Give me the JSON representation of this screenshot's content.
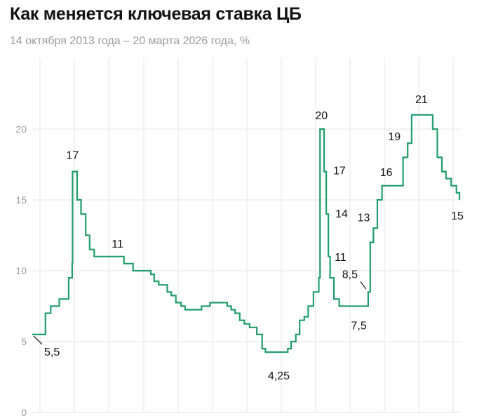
{
  "title": "Как меняется ключевая ставка ЦБ",
  "subtitle": "14 октября 2013 года – 20 марта 2026 года, %",
  "colors": {
    "line": "#1f9d6b",
    "grid": "#e6e6e6",
    "axis_text": "#9a9a9a"
  },
  "chart_data": {
    "type": "line",
    "step": true,
    "grid": true,
    "ylim": [
      0,
      21
    ],
    "xlim": [
      "2013-10-14",
      "2026-03-20"
    ],
    "y_ticks": [
      "0",
      "5",
      "10",
      "15",
      "20"
    ],
    "series": [
      {
        "points": [
          [
            "2013-10-14",
            5.5
          ],
          [
            "2014-03-03",
            7
          ],
          [
            "2014-04-28",
            7.5
          ],
          [
            "2014-07-28",
            8
          ],
          [
            "2014-11-05",
            9.5
          ],
          [
            "2014-12-12",
            10.5
          ],
          [
            "2014-12-16",
            17
          ],
          [
            "2015-02-02",
            15
          ],
          [
            "2015-03-16",
            14
          ],
          [
            "2015-05-05",
            12.5
          ],
          [
            "2015-06-16",
            11.5
          ],
          [
            "2015-08-03",
            11
          ],
          [
            "2016-06-14",
            10.5
          ],
          [
            "2016-09-19",
            10
          ],
          [
            "2017-03-27",
            9.75
          ],
          [
            "2017-05-02",
            9.25
          ],
          [
            "2017-06-19",
            9
          ],
          [
            "2017-09-18",
            8.5
          ],
          [
            "2017-10-30",
            8.25
          ],
          [
            "2017-12-18",
            7.75
          ],
          [
            "2018-02-12",
            7.5
          ],
          [
            "2018-03-26",
            7.25
          ],
          [
            "2018-09-17",
            7.5
          ],
          [
            "2018-12-17",
            7.75
          ],
          [
            "2019-06-17",
            7.5
          ],
          [
            "2019-07-29",
            7.25
          ],
          [
            "2019-09-09",
            7
          ],
          [
            "2019-10-28",
            6.5
          ],
          [
            "2019-12-16",
            6.25
          ],
          [
            "2020-02-10",
            6
          ],
          [
            "2020-04-27",
            5.5
          ],
          [
            "2020-06-22",
            4.5
          ],
          [
            "2020-07-27",
            4.25
          ],
          [
            "2021-03-22",
            4.5
          ],
          [
            "2021-04-26",
            5
          ],
          [
            "2021-06-15",
            5.5
          ],
          [
            "2021-07-26",
            6.5
          ],
          [
            "2021-09-13",
            6.75
          ],
          [
            "2021-10-25",
            7.5
          ],
          [
            "2021-12-20",
            8.5
          ],
          [
            "2022-02-14",
            9.5
          ],
          [
            "2022-02-28",
            20
          ],
          [
            "2022-04-11",
            17
          ],
          [
            "2022-05-04",
            14
          ],
          [
            "2022-05-27",
            11
          ],
          [
            "2022-06-14",
            9.5
          ],
          [
            "2022-07-25",
            8
          ],
          [
            "2022-09-19",
            7.5
          ],
          [
            "2023-07-24",
            8.5
          ],
          [
            "2023-08-15",
            12
          ],
          [
            "2023-09-18",
            13
          ],
          [
            "2023-10-30",
            15
          ],
          [
            "2023-12-18",
            16
          ],
          [
            "2024-07-29",
            18
          ],
          [
            "2024-09-16",
            19
          ],
          [
            "2024-10-28",
            21
          ],
          [
            "2025-06-09",
            20
          ],
          [
            "2025-07-28",
            18
          ],
          [
            "2025-09-15",
            17
          ],
          [
            "2025-10-27",
            16.5
          ],
          [
            "2025-12-22",
            16
          ],
          [
            "2026-02-16",
            15.5
          ],
          [
            "2026-03-20",
            15
          ]
        ]
      }
    ],
    "annotations": [
      {
        "text": "5,5",
        "x": "2013-10-14",
        "y": 5.5
      },
      {
        "text": "17",
        "x": "2014-12-16",
        "y": 17
      },
      {
        "text": "11",
        "x": "2015-08-03",
        "y": 11
      },
      {
        "text": "4,25",
        "x": "2020-07-27",
        "y": 4.25
      },
      {
        "text": "20",
        "x": "2022-02-28",
        "y": 20
      },
      {
        "text": "17",
        "x": "2022-04-11",
        "y": 17
      },
      {
        "text": "14",
        "x": "2022-05-04",
        "y": 14
      },
      {
        "text": "11",
        "x": "2022-05-27",
        "y": 11
      },
      {
        "text": "7,5",
        "x": "2022-09-19",
        "y": 7.5
      },
      {
        "text": "8,5",
        "x": "2023-07-24",
        "y": 8.5
      },
      {
        "text": "13",
        "x": "2023-09-18",
        "y": 13
      },
      {
        "text": "16",
        "x": "2023-12-18",
        "y": 16
      },
      {
        "text": "19",
        "x": "2024-09-16",
        "y": 19
      },
      {
        "text": "21",
        "x": "2024-10-28",
        "y": 21
      },
      {
        "text": "15",
        "x": "2026-03-20",
        "y": 15
      }
    ]
  }
}
